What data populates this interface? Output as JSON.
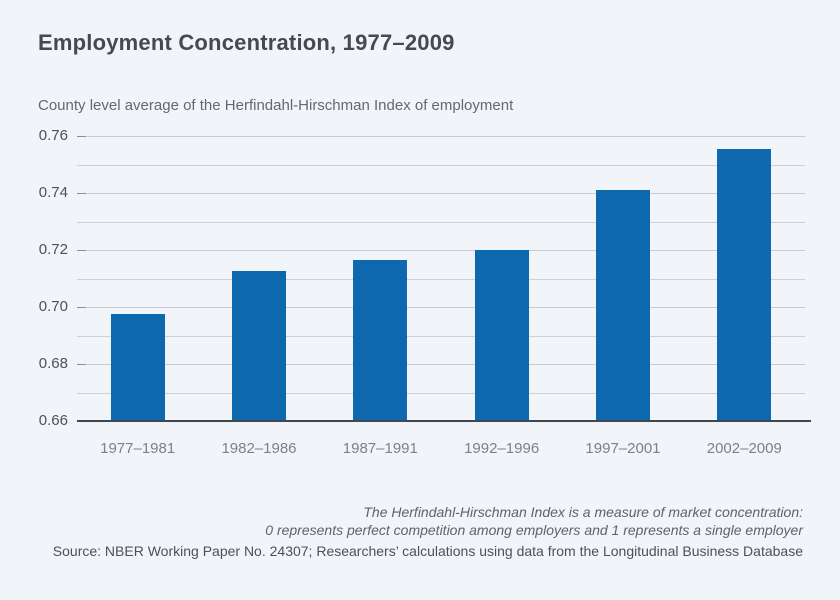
{
  "page": {
    "background": "#f1f4f8"
  },
  "header": {
    "title": "Employment Concentration, 1977–2009"
  },
  "chart": {
    "subtitle": "County level average of the Herfindahl-Hirschman Index of employment"
  },
  "chart_data": {
    "type": "bar",
    "title": "Employment Concentration, 1977–2009",
    "subtitle": "County level average of the Herfindahl-Hirschman Index of employment",
    "categories": [
      "1977–1981",
      "1982–1986",
      "1987–1991",
      "1992–1996",
      "1997–2001",
      "2002–2009"
    ],
    "values": [
      0.6975,
      0.7125,
      0.7165,
      0.72,
      0.741,
      0.7555
    ],
    "xlabel": "",
    "ylabel": "",
    "ylim": [
      0.66,
      0.76
    ],
    "y_grid_step": 0.01,
    "y_label_step": 0.02,
    "y_tick_labels": [
      "0.66",
      "0.68",
      "0.70",
      "0.72",
      "0.74",
      "0.76"
    ],
    "grid": true,
    "legend": "none",
    "bar_color": "#0d68ae",
    "axis_color": "#41464c",
    "grid_color": "#ccd1d9",
    "background_color": "#f1f4f8"
  },
  "footer": {
    "note_line1": "The Herfindahl-Hirschman Index is a measure of market concentration:",
    "note_line2": "0 represents perfect competition among employers and 1 represents a single employer",
    "source": "Source: NBER Working Paper No. 24307; Researchers’ calculations using data from the Longitudinal Business Database"
  }
}
